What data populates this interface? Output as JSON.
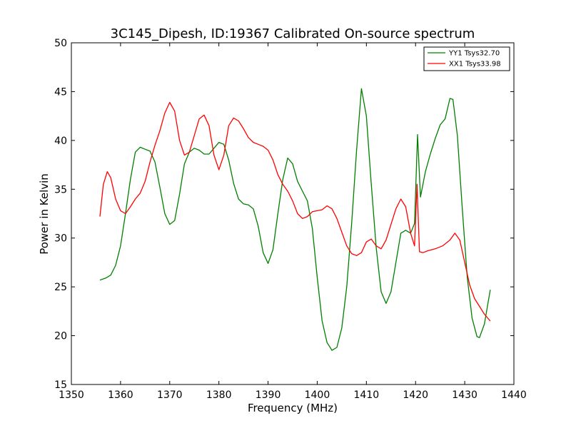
{
  "chart_data": {
    "type": "line",
    "title": "3C145_Dipesh, ID:19367 Calibrated On-source spectrum",
    "xlabel": "Frequency (MHz)",
    "ylabel": "Power in Kelvin",
    "xlim": [
      1350,
      1440
    ],
    "ylim": [
      15,
      50
    ],
    "xticks": [
      "1350",
      "1360",
      "1370",
      "1380",
      "1390",
      "1400",
      "1410",
      "1420",
      "1430",
      "1440"
    ],
    "yticks": [
      "15",
      "20",
      "25",
      "30",
      "35",
      "40",
      "45",
      "50"
    ],
    "grid": false,
    "legend_position": "top-right",
    "series": [
      {
        "name": "YY1 Tsys32.70",
        "color": "#008000",
        "points": [
          [
            1355.8,
            25.7
          ],
          [
            1357.0,
            25.9
          ],
          [
            1358.0,
            26.2
          ],
          [
            1359.0,
            27.2
          ],
          [
            1360.0,
            29.2
          ],
          [
            1361.0,
            32.5
          ],
          [
            1362.0,
            36.0
          ],
          [
            1363.0,
            38.8
          ],
          [
            1364.0,
            39.3
          ],
          [
            1365.0,
            39.1
          ],
          [
            1366.0,
            38.9
          ],
          [
            1367.0,
            37.8
          ],
          [
            1368.0,
            35.2
          ],
          [
            1369.0,
            32.5
          ],
          [
            1370.0,
            31.4
          ],
          [
            1371.0,
            31.8
          ],
          [
            1372.0,
            34.5
          ],
          [
            1373.0,
            37.6
          ],
          [
            1374.0,
            38.8
          ],
          [
            1375.0,
            39.2
          ],
          [
            1376.0,
            39.0
          ],
          [
            1377.0,
            38.6
          ],
          [
            1378.0,
            38.6
          ],
          [
            1379.0,
            39.2
          ],
          [
            1380.0,
            39.8
          ],
          [
            1381.0,
            39.6
          ],
          [
            1382.0,
            38.0
          ],
          [
            1383.0,
            35.6
          ],
          [
            1384.0,
            34.0
          ],
          [
            1385.0,
            33.5
          ],
          [
            1386.0,
            33.4
          ],
          [
            1387.0,
            33.0
          ],
          [
            1388.0,
            31.2
          ],
          [
            1389.0,
            28.5
          ],
          [
            1390.0,
            27.4
          ],
          [
            1391.0,
            28.8
          ],
          [
            1392.0,
            32.5
          ],
          [
            1393.0,
            36.0
          ],
          [
            1394.0,
            38.2
          ],
          [
            1395.0,
            37.6
          ],
          [
            1396.0,
            35.8
          ],
          [
            1397.0,
            34.8
          ],
          [
            1398.0,
            33.8
          ],
          [
            1399.0,
            31.0
          ],
          [
            1400.0,
            26.0
          ],
          [
            1401.0,
            21.5
          ],
          [
            1402.0,
            19.3
          ],
          [
            1403.0,
            18.5
          ],
          [
            1404.0,
            18.8
          ],
          [
            1405.0,
            20.8
          ],
          [
            1406.0,
            25.0
          ],
          [
            1407.0,
            31.5
          ],
          [
            1408.0,
            39.0
          ],
          [
            1409.0,
            45.3
          ],
          [
            1410.0,
            42.5
          ],
          [
            1411.0,
            35.5
          ],
          [
            1412.0,
            29.0
          ],
          [
            1413.0,
            24.5
          ],
          [
            1414.0,
            23.3
          ],
          [
            1415.0,
            24.5
          ],
          [
            1416.0,
            27.5
          ],
          [
            1417.0,
            30.5
          ],
          [
            1418.0,
            30.8
          ],
          [
            1419.0,
            30.5
          ],
          [
            1419.8,
            31.5
          ],
          [
            1420.4,
            40.6
          ],
          [
            1421.0,
            34.2
          ],
          [
            1422.0,
            36.8
          ],
          [
            1423.0,
            38.6
          ],
          [
            1424.0,
            40.2
          ],
          [
            1425.0,
            41.6
          ],
          [
            1426.0,
            42.2
          ],
          [
            1427.0,
            44.3
          ],
          [
            1427.6,
            44.2
          ],
          [
            1428.5,
            40.5
          ],
          [
            1429.5,
            33.0
          ],
          [
            1430.5,
            26.0
          ],
          [
            1431.5,
            21.8
          ],
          [
            1432.5,
            19.9
          ],
          [
            1433.0,
            19.8
          ],
          [
            1434.0,
            21.2
          ],
          [
            1435.2,
            24.7
          ]
        ]
      },
      {
        "name": "XX1 Tsys33.98",
        "color": "#ff0000",
        "points": [
          [
            1355.8,
            32.2
          ],
          [
            1356.5,
            35.5
          ],
          [
            1357.3,
            36.8
          ],
          [
            1358.0,
            36.2
          ],
          [
            1359.0,
            34.0
          ],
          [
            1360.0,
            32.8
          ],
          [
            1361.0,
            32.5
          ],
          [
            1362.0,
            33.2
          ],
          [
            1363.0,
            34.0
          ],
          [
            1364.0,
            34.6
          ],
          [
            1365.0,
            35.8
          ],
          [
            1366.0,
            37.8
          ],
          [
            1367.0,
            39.5
          ],
          [
            1368.0,
            41.0
          ],
          [
            1369.0,
            42.8
          ],
          [
            1370.0,
            43.9
          ],
          [
            1371.0,
            43.0
          ],
          [
            1372.0,
            40.0
          ],
          [
            1373.0,
            38.5
          ],
          [
            1374.0,
            38.8
          ],
          [
            1375.0,
            40.5
          ],
          [
            1376.0,
            42.2
          ],
          [
            1377.0,
            42.6
          ],
          [
            1378.0,
            41.5
          ],
          [
            1379.0,
            38.5
          ],
          [
            1380.0,
            37.0
          ],
          [
            1381.0,
            38.5
          ],
          [
            1382.0,
            41.5
          ],
          [
            1383.0,
            42.3
          ],
          [
            1384.0,
            42.0
          ],
          [
            1385.0,
            41.2
          ],
          [
            1386.0,
            40.3
          ],
          [
            1387.0,
            39.8
          ],
          [
            1388.0,
            39.6
          ],
          [
            1389.0,
            39.4
          ],
          [
            1390.0,
            39.0
          ],
          [
            1391.0,
            38.0
          ],
          [
            1392.0,
            36.5
          ],
          [
            1393.0,
            35.5
          ],
          [
            1394.0,
            34.8
          ],
          [
            1395.0,
            33.8
          ],
          [
            1396.0,
            32.5
          ],
          [
            1397.0,
            32.0
          ],
          [
            1398.0,
            32.2
          ],
          [
            1399.0,
            32.7
          ],
          [
            1400.0,
            32.8
          ],
          [
            1401.0,
            32.9
          ],
          [
            1402.0,
            33.3
          ],
          [
            1403.0,
            33.0
          ],
          [
            1404.0,
            32.0
          ],
          [
            1405.0,
            30.6
          ],
          [
            1406.0,
            29.2
          ],
          [
            1407.0,
            28.4
          ],
          [
            1408.0,
            28.2
          ],
          [
            1409.0,
            28.5
          ],
          [
            1410.0,
            29.6
          ],
          [
            1411.0,
            29.9
          ],
          [
            1412.0,
            29.2
          ],
          [
            1413.0,
            28.9
          ],
          [
            1414.0,
            29.8
          ],
          [
            1415.0,
            31.4
          ],
          [
            1416.0,
            33.0
          ],
          [
            1417.0,
            34.0
          ],
          [
            1418.0,
            33.2
          ],
          [
            1419.0,
            30.5
          ],
          [
            1419.8,
            29.2
          ],
          [
            1420.3,
            35.5
          ],
          [
            1420.8,
            28.6
          ],
          [
            1421.5,
            28.5
          ],
          [
            1422.5,
            28.7
          ],
          [
            1424.0,
            28.9
          ],
          [
            1425.5,
            29.2
          ],
          [
            1427.0,
            29.8
          ],
          [
            1428.0,
            30.5
          ],
          [
            1429.0,
            29.8
          ],
          [
            1430.0,
            27.5
          ],
          [
            1431.0,
            25.2
          ],
          [
            1432.0,
            23.8
          ],
          [
            1433.0,
            23.0
          ],
          [
            1434.0,
            22.2
          ],
          [
            1435.2,
            21.5
          ]
        ]
      }
    ]
  }
}
